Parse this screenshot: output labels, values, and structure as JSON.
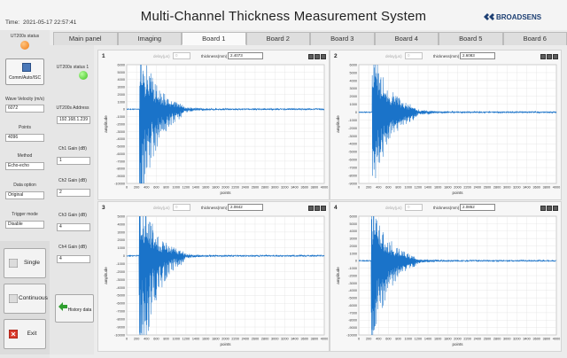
{
  "header": {
    "time_label": "Time:",
    "time_value": "2021-05-17 22:57:41",
    "title": "Multi-Channel  Thickness Measurement System",
    "brand": "BROADSENS"
  },
  "tabs": [
    {
      "label": "Main panel",
      "active": false
    },
    {
      "label": "Imaging",
      "active": false
    },
    {
      "label": "Board 1",
      "active": true
    },
    {
      "label": "Board 2",
      "active": false
    },
    {
      "label": "Board 3",
      "active": false
    },
    {
      "label": "Board 4",
      "active": false
    },
    {
      "label": "Board 5",
      "active": false
    },
    {
      "label": "Board 6",
      "active": false
    }
  ],
  "left": {
    "status_label": "UT200s status",
    "comm_button": "Comm/Auto/ISC",
    "wave_velocity_label": "Wave Velocity (m/s)",
    "wave_velocity_value": "6072",
    "points_label": "Points",
    "points_value": "4096",
    "method_label": "Method",
    "method_value": "Echo-echo",
    "data_option_label": "Data option",
    "data_option_value": "Original",
    "trigger_mode_label": "Trigger mode",
    "trigger_mode_value": "Disable",
    "single_button": "Single",
    "continuous_button": "Continuous",
    "exit_button": "Exit"
  },
  "board": {
    "status_label": "UT200s status 1",
    "address_label": "UT200s Address",
    "address_value": "192.168.1.239",
    "gains": [
      {
        "label": "Ch1 Gain  (dB)",
        "value": "1"
      },
      {
        "label": "Ch2 Gain  (dB)",
        "value": "2"
      },
      {
        "label": "Ch3 Gain  (dB)",
        "value": "4"
      },
      {
        "label": "Ch4 Gain  (dB)",
        "value": "4"
      }
    ],
    "history_button": "History data"
  },
  "colors": {
    "signal": "#1a73c9",
    "led_ok": "#3bbe1c",
    "led_warn": "#f07a10"
  },
  "chart_data": [
    {
      "type": "line",
      "channel": "1",
      "delay_label": "delay(μs)",
      "delay_value": "0",
      "thickness_label": "thickness(mm)",
      "thickness_value": "2.4073",
      "xlabel": "points",
      "ylabel": "amplitude",
      "xlim": [
        0,
        4000
      ],
      "ylim": [
        -10000,
        6000
      ],
      "xticks": [
        0,
        200,
        400,
        600,
        800,
        1000,
        1200,
        1400,
        1600,
        1800,
        2000,
        2200,
        2400,
        2600,
        2800,
        3000,
        3200,
        3400,
        3600,
        3800,
        4000
      ],
      "yticks": [
        -10000,
        -9000,
        -8000,
        -7000,
        -6000,
        -5000,
        -4000,
        -3000,
        -2000,
        -1000,
        0,
        1000,
        2000,
        3000,
        4000,
        5000,
        6000
      ],
      "burst": {
        "start": 260,
        "peak": 5000,
        "trough": -9800,
        "decay": 330,
        "tail": 3900
      }
    },
    {
      "type": "line",
      "channel": "2",
      "delay_label": "delay(μs)",
      "delay_value": "0",
      "thickness_label": "thickness(mm)",
      "thickness_value": "2.6083",
      "xlabel": "points",
      "ylabel": "amplitude",
      "xlim": [
        0,
        4000
      ],
      "ylim": [
        -9000,
        6000
      ],
      "xticks": [
        0,
        200,
        400,
        600,
        800,
        1000,
        1200,
        1400,
        1600,
        1800,
        2000,
        2200,
        2400,
        2600,
        2800,
        3000,
        3200,
        3400,
        3600,
        3800,
        4000
      ],
      "yticks": [
        -9000,
        -8000,
        -7000,
        -6000,
        -5000,
        -4000,
        -3000,
        -2000,
        -1000,
        0,
        1000,
        2000,
        3000,
        4000,
        5000,
        6000
      ],
      "burst": {
        "start": 270,
        "peak": 5500,
        "trough": -8500,
        "decay": 360,
        "tail": 3900
      }
    },
    {
      "type": "line",
      "channel": "3",
      "delay_label": "delay(μs)",
      "delay_value": "0",
      "thickness_label": "thickness(mm)",
      "thickness_value": "2.0842",
      "xlabel": "points",
      "ylabel": "amplitude",
      "xlim": [
        0,
        4000
      ],
      "ylim": [
        -10000,
        5000
      ],
      "xticks": [
        0,
        200,
        400,
        600,
        800,
        1000,
        1200,
        1400,
        1600,
        1800,
        2000,
        2200,
        2400,
        2600,
        2800,
        3000,
        3200,
        3400,
        3600,
        3800,
        4000
      ],
      "yticks": [
        -10000,
        -9000,
        -8000,
        -7000,
        -6000,
        -5000,
        -4000,
        -3000,
        -2000,
        -1000,
        0,
        1000,
        2000,
        3000,
        4000,
        5000
      ],
      "burst": {
        "start": 250,
        "peak": 4200,
        "trough": -9500,
        "decay": 320,
        "tail": 3900
      }
    },
    {
      "type": "line",
      "channel": "4",
      "delay_label": "delay(μs)",
      "delay_value": "0",
      "thickness_label": "thickness(mm)",
      "thickness_value": "2.0852",
      "xlabel": "points",
      "ylabel": "amplitude",
      "xlim": [
        0,
        4000
      ],
      "ylim": [
        -10000,
        6000
      ],
      "xticks": [
        0,
        200,
        400,
        600,
        800,
        1000,
        1200,
        1400,
        1600,
        1800,
        2000,
        2200,
        2400,
        2600,
        2800,
        3000,
        3200,
        3400,
        3600,
        3800,
        4000
      ],
      "yticks": [
        -10000,
        -9000,
        -8000,
        -7000,
        -6000,
        -5000,
        -4000,
        -3000,
        -2000,
        -1000,
        0,
        1000,
        2000,
        3000,
        4000,
        5000,
        6000
      ],
      "burst": {
        "start": 250,
        "peak": 5200,
        "trough": -9000,
        "decay": 340,
        "tail": 3900
      }
    }
  ]
}
